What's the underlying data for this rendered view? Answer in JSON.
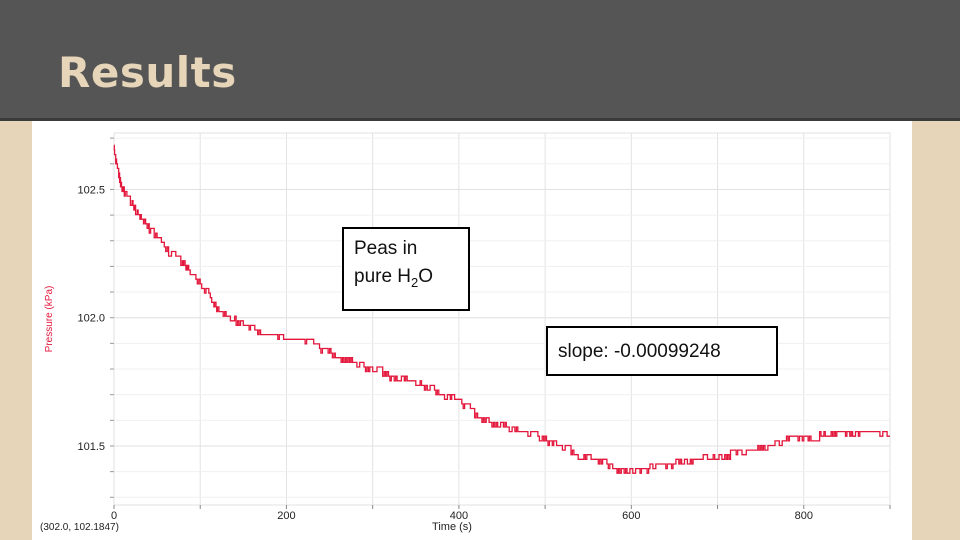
{
  "slide": {
    "title": "Results"
  },
  "annotations": {
    "peas_line1": "Peas in",
    "peas_line2_prefix": "pure H",
    "peas_sub": "2",
    "peas_suffix": "O",
    "slope": "slope: -0.00099248"
  },
  "readout": "(302.0, 102.1847)",
  "colors": {
    "series": "#e3173b",
    "ylabel": "#e3173b",
    "grid": "#e2e2e2",
    "header": "#555555",
    "background": "#e6d5b8",
    "title": "#e6d5b8"
  },
  "chart_data": {
    "type": "line",
    "title": "",
    "xlabel": "Time (s)",
    "ylabel": "Pressure (kPa)",
    "xlim": [
      0,
      900
    ],
    "ylim": [
      101.27,
      102.72
    ],
    "xticks": [
      0,
      200,
      400,
      600,
      800
    ],
    "yticks": [
      101.5,
      102.0,
      102.5
    ],
    "ytick_labels": [
      "101.5",
      "102.0",
      "102.5"
    ],
    "grid": true,
    "series": [
      {
        "x": [
          0,
          2,
          5,
          8,
          12,
          18,
          24,
          30,
          35,
          40,
          45,
          55,
          65,
          75,
          80,
          85,
          90,
          100,
          110,
          115,
          120,
          130,
          140,
          150,
          160,
          170,
          180,
          190,
          200,
          210,
          220,
          230,
          240,
          250,
          260,
          270,
          280,
          290,
          300,
          310,
          320,
          330,
          340,
          350,
          360,
          370,
          380,
          390,
          400,
          410,
          420,
          430,
          440,
          450,
          460,
          470,
          480,
          490,
          500,
          510,
          520,
          530,
          540,
          550,
          560,
          570,
          580,
          590,
          600,
          610,
          620,
          630,
          640,
          650,
          660,
          670,
          680,
          690,
          700,
          710,
          720,
          730,
          740,
          750,
          760,
          770,
          780,
          790,
          800,
          810,
          820,
          830,
          840,
          850,
          860,
          870,
          880,
          890,
          900
        ],
        "y": [
          102.67,
          102.62,
          102.58,
          102.52,
          102.5,
          102.47,
          102.43,
          102.4,
          102.38,
          102.36,
          102.34,
          102.3,
          102.26,
          102.24,
          102.22,
          102.2,
          102.17,
          102.14,
          102.1,
          102.07,
          102.04,
          102.02,
          102.0,
          101.98,
          101.97,
          101.95,
          101.94,
          101.93,
          101.92,
          101.92,
          101.91,
          101.91,
          101.88,
          101.88,
          101.85,
          101.85,
          101.82,
          101.82,
          101.8,
          101.8,
          101.78,
          101.78,
          101.76,
          101.76,
          101.73,
          101.73,
          101.7,
          101.7,
          101.68,
          101.66,
          101.63,
          101.61,
          101.59,
          101.59,
          101.57,
          101.57,
          101.55,
          101.55,
          101.53,
          101.52,
          101.51,
          101.49,
          101.47,
          101.46,
          101.45,
          101.44,
          101.42,
          101.42,
          101.42,
          101.42,
          101.42,
          101.43,
          101.43,
          101.44,
          101.45,
          101.45,
          101.46,
          101.46,
          101.47,
          101.47,
          101.48,
          101.49,
          101.49,
          101.5,
          101.51,
          101.52,
          101.53,
          101.53,
          101.54,
          101.54,
          101.55,
          101.55,
          101.55,
          101.55,
          101.55,
          101.55,
          101.55,
          101.55,
          101.55
        ]
      }
    ]
  }
}
